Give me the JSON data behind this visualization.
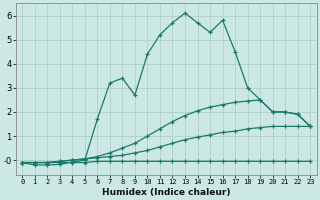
{
  "xlabel": "Humidex (Indice chaleur)",
  "bg_color": "#cce8e4",
  "grid_color": "#b0ceca",
  "line_color": "#1a7a6a",
  "xlim": [
    -0.5,
    23.5
  ],
  "ylim": [
    -0.6,
    6.5
  ],
  "xticks": [
    0,
    1,
    2,
    3,
    4,
    5,
    6,
    7,
    8,
    9,
    10,
    11,
    12,
    13,
    14,
    15,
    16,
    17,
    18,
    19,
    20,
    21,
    22,
    23
  ],
  "yticks": [
    0,
    1,
    2,
    3,
    4,
    5,
    6
  ],
  "ytick_labels": [
    "-0",
    "1",
    "2",
    "3",
    "4",
    "5",
    "6"
  ],
  "series": [
    {
      "x": [
        0,
        1,
        2,
        3,
        4,
        5,
        6,
        7,
        8,
        9,
        10,
        11,
        12,
        13,
        14,
        15,
        16,
        17,
        18,
        19,
        20,
        21,
        22,
        23
      ],
      "y": [
        -0.1,
        -0.1,
        -0.1,
        -0.1,
        -0.1,
        -0.1,
        -0.05,
        -0.05,
        -0.05,
        -0.05,
        -0.05,
        -0.05,
        -0.05,
        -0.05,
        -0.05,
        -0.05,
        -0.05,
        -0.05,
        -0.05,
        -0.05,
        -0.05,
        -0.05,
        -0.05,
        -0.05
      ]
    },
    {
      "x": [
        0,
        1,
        2,
        3,
        4,
        5,
        6,
        7,
        8,
        9,
        10,
        11,
        12,
        13,
        14,
        15,
        16,
        17,
        18,
        19,
        20,
        21,
        22,
        23
      ],
      "y": [
        -0.1,
        -0.1,
        -0.1,
        -0.05,
        0.0,
        0.05,
        0.1,
        0.15,
        0.2,
        0.3,
        0.4,
        0.55,
        0.7,
        0.85,
        0.95,
        1.05,
        1.15,
        1.2,
        1.3,
        1.35,
        1.4,
        1.4,
        1.4,
        1.4
      ]
    },
    {
      "x": [
        0,
        1,
        2,
        3,
        4,
        5,
        6,
        7,
        8,
        9,
        10,
        11,
        12,
        13,
        14,
        15,
        16,
        17,
        18,
        19,
        20,
        21,
        22,
        23
      ],
      "y": [
        -0.1,
        -0.1,
        -0.1,
        -0.05,
        0.0,
        0.05,
        0.15,
        0.3,
        0.5,
        0.7,
        1.0,
        1.3,
        1.6,
        1.85,
        2.05,
        2.2,
        2.3,
        2.4,
        2.45,
        2.5,
        2.0,
        2.0,
        1.9,
        1.4
      ]
    },
    {
      "x": [
        0,
        1,
        2,
        3,
        4,
        5,
        6,
        7,
        8,
        9,
        10,
        11,
        12,
        13,
        14,
        15,
        16,
        17,
        18,
        19,
        20,
        21,
        22,
        23
      ],
      "y": [
        -0.1,
        -0.2,
        -0.2,
        -0.18,
        -0.08,
        -0.0,
        1.7,
        3.2,
        3.4,
        2.7,
        4.4,
        5.2,
        5.7,
        6.1,
        5.7,
        5.3,
        5.8,
        4.5,
        3.0,
        2.5,
        2.0,
        2.0,
        1.9,
        1.4
      ]
    }
  ]
}
